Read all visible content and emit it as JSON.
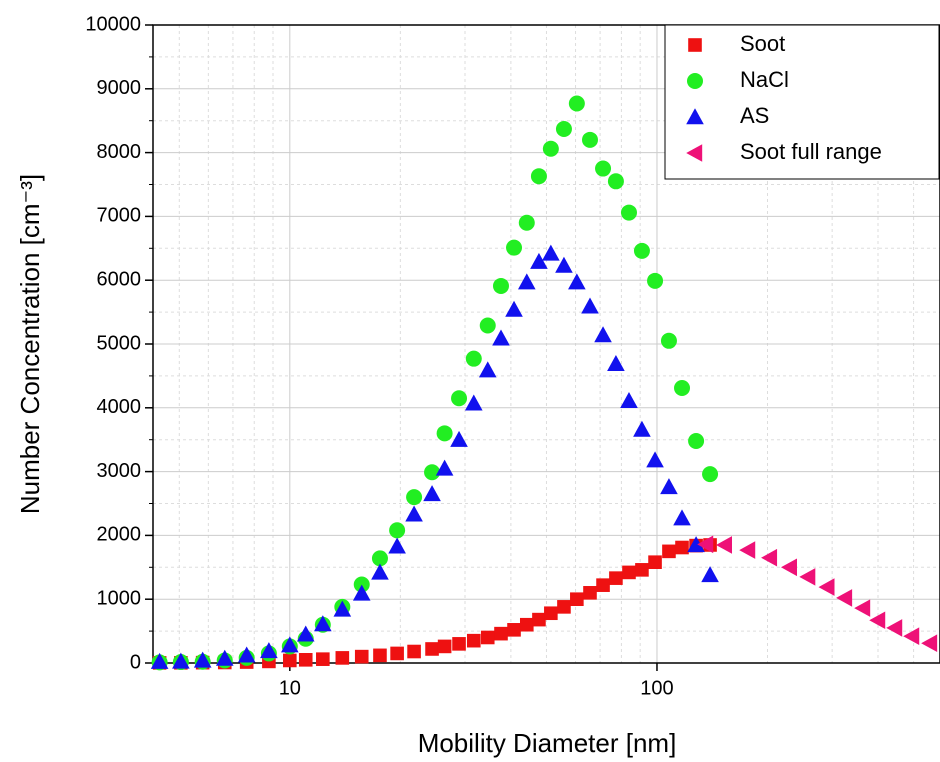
{
  "chart_data": {
    "type": "scatter",
    "xlabel": "Mobility Diameter [nm]",
    "ylabel": "Number Concentration [cm⁻³]",
    "xscale": "log",
    "xlim": [
      4.24,
      590
    ],
    "xticks": [
      10,
      100
    ],
    "ylim": [
      0,
      10000
    ],
    "yticks": [
      0,
      1000,
      2000,
      3000,
      4000,
      5000,
      6000,
      7000,
      8000,
      9000,
      10000
    ],
    "grid": true,
    "legend": "upper right",
    "series": [
      {
        "name": "Soot",
        "color": "#ee1111",
        "marker": "square",
        "x": [
          4.42,
          5.05,
          5.79,
          6.65,
          7.63,
          8.77,
          10.0,
          11.05,
          12.3,
          13.9,
          15.7,
          17.6,
          19.6,
          21.8,
          24.4,
          26.4,
          28.9,
          31.7,
          34.6,
          37.6,
          40.8,
          44.2,
          47.7,
          51.4,
          55.8,
          60.5,
          65.7,
          71.3,
          77.3,
          83.9,
          91.0,
          98.8,
          107.8,
          117.0,
          127.8,
          139.5
        ],
        "values": [
          2,
          3,
          5,
          8,
          15,
          25,
          40,
          50,
          60,
          80,
          100,
          120,
          150,
          180,
          220,
          260,
          300,
          350,
          400,
          460,
          520,
          600,
          680,
          780,
          880,
          1000,
          1100,
          1220,
          1330,
          1420,
          1460,
          1580,
          1750,
          1810,
          1840,
          1850
        ]
      },
      {
        "name": "NaCl",
        "color": "#22ee22",
        "marker": "circle",
        "x": [
          4.42,
          5.05,
          5.79,
          6.65,
          7.63,
          8.77,
          10.0,
          11.05,
          12.3,
          13.9,
          15.7,
          17.6,
          19.6,
          21.8,
          24.4,
          26.4,
          28.9,
          31.7,
          34.6,
          37.6,
          40.8,
          44.2,
          47.7,
          51.4,
          55.8,
          60.5,
          65.7,
          71.3,
          77.3,
          83.9,
          91.0,
          98.8,
          107.8,
          117.0,
          127.8,
          139.5
        ],
        "values": [
          10,
          15,
          20,
          40,
          80,
          150,
          260,
          380,
          600,
          880,
          1230,
          1640,
          2080,
          2600,
          2990,
          3600,
          4150,
          4770,
          5290,
          5910,
          6510,
          6900,
          7630,
          8060,
          8370,
          8770,
          8200,
          7750,
          7550,
          7060,
          6460,
          5990,
          5050,
          4310,
          3480,
          2960
        ]
      },
      {
        "name": "AS",
        "color": "#1111ee",
        "marker": "triangle-up",
        "x": [
          4.42,
          5.05,
          5.79,
          6.65,
          7.63,
          8.77,
          10.0,
          11.05,
          12.3,
          13.9,
          15.7,
          17.6,
          19.6,
          21.8,
          24.4,
          26.4,
          28.9,
          31.7,
          34.6,
          37.6,
          40.8,
          44.2,
          47.7,
          51.4,
          55.8,
          60.5,
          65.7,
          71.3,
          77.3,
          83.9,
          91.0,
          98.8,
          107.8,
          117.0,
          127.8,
          139.5
        ],
        "values": [
          20,
          25,
          40,
          70,
          120,
          190,
          280,
          450,
          610,
          840,
          1090,
          1420,
          1830,
          2330,
          2650,
          3050,
          3500,
          4070,
          4590,
          5090,
          5540,
          5970,
          6290,
          6420,
          6230,
          5970,
          5590,
          5140,
          4690,
          4110,
          3660,
          3180,
          2760,
          2270,
          1850,
          1380
        ]
      },
      {
        "name": "Soot full range",
        "color": "#ee1177",
        "marker": "triangle-left",
        "x": [
          136,
          153,
          177,
          203,
          230,
          258,
          291,
          325,
          364,
          400,
          445,
          495,
          554
        ],
        "values": [
          1860,
          1850,
          1770,
          1650,
          1500,
          1350,
          1190,
          1020,
          860,
          670,
          550,
          420,
          310
        ]
      }
    ]
  }
}
